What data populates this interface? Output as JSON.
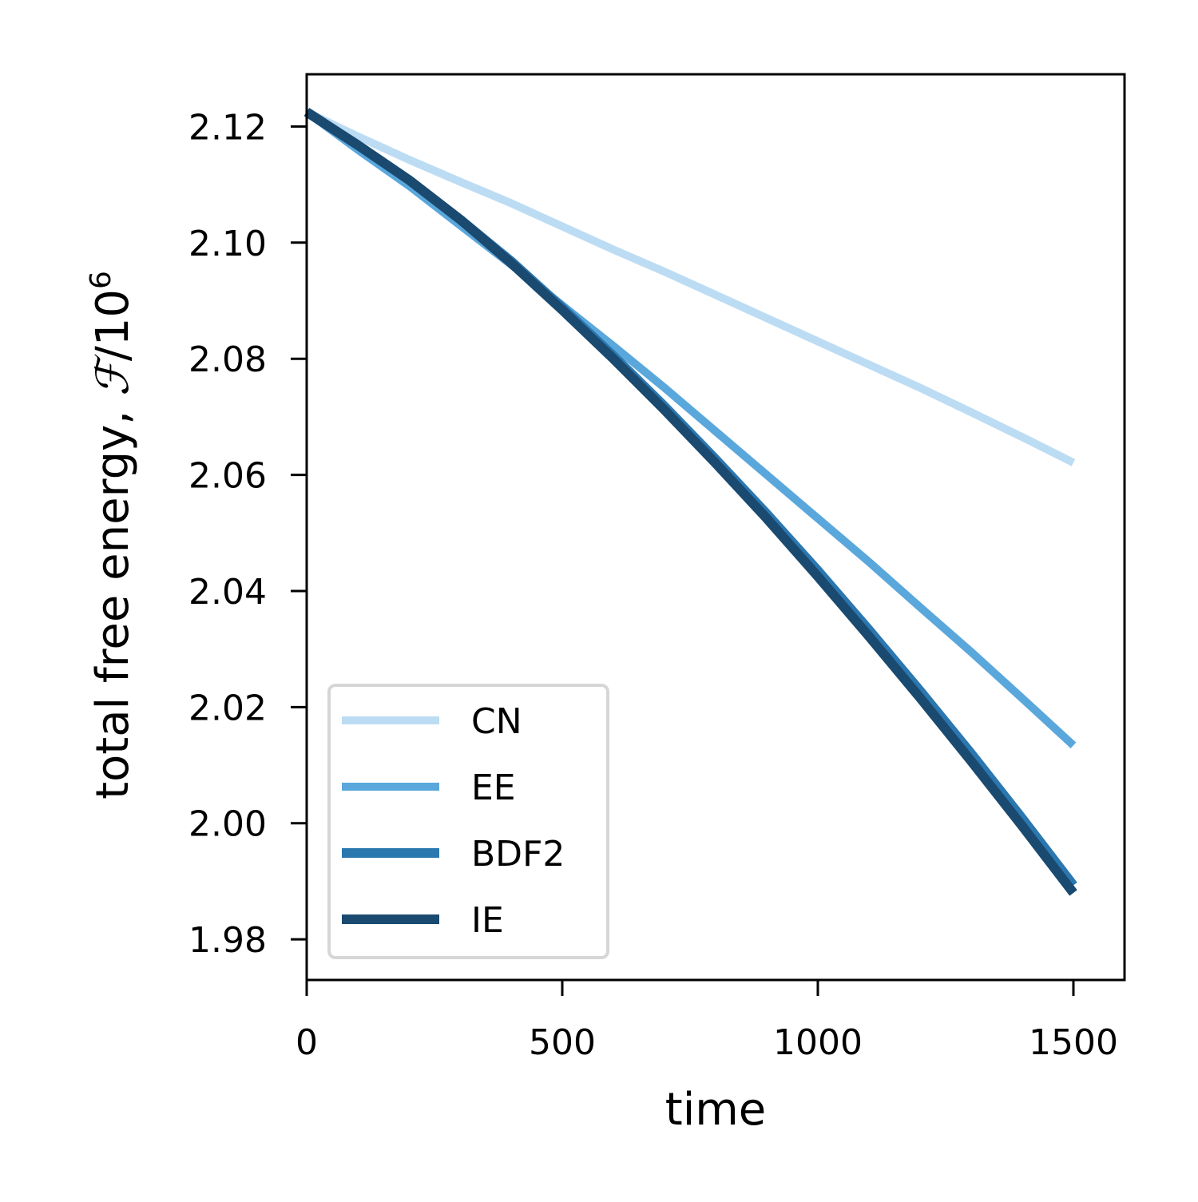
{
  "chart_data": {
    "type": "line",
    "xlabel": "time",
    "ylabel": {
      "prefix": "total free energy, ",
      "symbol": "ℱ",
      "suffix": "/10",
      "exponent": "6"
    },
    "xlim": [
      0,
      1600
    ],
    "ylim": [
      1.973,
      2.129
    ],
    "xticks": [
      0,
      500,
      1000,
      1500
    ],
    "xtick_labels": [
      "0",
      "500",
      "1000",
      "1500"
    ],
    "yticks": [
      1.98,
      2.0,
      2.02,
      2.04,
      2.06,
      2.08,
      2.1,
      2.12
    ],
    "ytick_labels": [
      "1.98",
      "2.00",
      "2.02",
      "2.04",
      "2.06",
      "2.08",
      "2.10",
      "2.12"
    ],
    "grid": false,
    "legend_position": "lower-left",
    "series": [
      {
        "name": "CN",
        "color": "#bcdcf3",
        "x": [
          0,
          100,
          200,
          300,
          400,
          500,
          600,
          700,
          800,
          900,
          1000,
          1100,
          1200,
          1300,
          1400,
          1500
        ],
        "y": [
          2.1225,
          2.1183,
          2.1143,
          2.1105,
          2.1068,
          2.1028,
          2.0988,
          2.095,
          2.091,
          2.087,
          2.083,
          2.079,
          2.075,
          2.0708,
          2.0665,
          2.0621
        ]
      },
      {
        "name": "EE",
        "color": "#5aa7dc",
        "x": [
          0,
          100,
          200,
          300,
          400,
          500,
          600,
          700,
          800,
          900,
          1000,
          1100,
          1200,
          1300,
          1400,
          1500
        ],
        "y": [
          2.1225,
          2.116,
          2.1098,
          2.103,
          2.0962,
          2.0892,
          2.0822,
          2.075,
          2.0675,
          2.06,
          2.0525,
          2.045,
          2.0372,
          2.0295,
          2.0215,
          2.0134
        ]
      },
      {
        "name": "BDF2",
        "color": "#2b77b0",
        "x": [
          0,
          100,
          200,
          300,
          400,
          500,
          600,
          700,
          800,
          900,
          1000,
          1100,
          1200,
          1300,
          1400,
          1500
        ],
        "y": [
          2.1225,
          2.1168,
          2.1108,
          2.104,
          2.0968,
          2.0888,
          2.0805,
          2.0718,
          2.0627,
          2.0533,
          2.0435,
          2.0333,
          2.0228,
          2.012,
          2.0008,
          1.9893
        ]
      },
      {
        "name": "IE",
        "color": "#1a4a70",
        "x": [
          0,
          100,
          200,
          300,
          400,
          500,
          600,
          700,
          800,
          900,
          1000,
          1100,
          1200,
          1300,
          1400,
          1500
        ],
        "y": [
          2.1225,
          2.1168,
          2.1108,
          2.104,
          2.0965,
          2.0884,
          2.08,
          2.0712,
          2.062,
          2.0525,
          2.0425,
          2.0322,
          2.0216,
          2.0107,
          1.9995,
          1.988
        ]
      }
    ]
  }
}
